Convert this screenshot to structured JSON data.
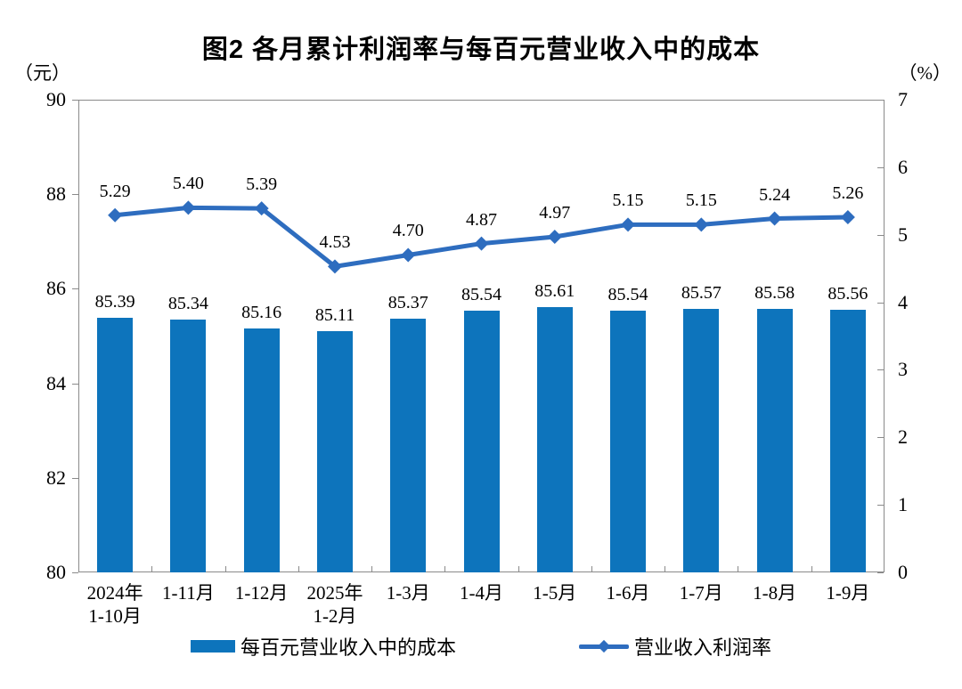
{
  "colors": {
    "bar": "#0d74bc",
    "line": "#2e6dbf",
    "axis": "#8a8a8a",
    "text": "#000000",
    "background": "#ffffff"
  },
  "chart_data": {
    "type": "combo-bar-line",
    "title": "图2 各月累计利润率与每百元营业收入中的成本",
    "categories": [
      "2024年\n1-10月",
      "1-11月",
      "1-12月",
      "2025年\n1-2月",
      "1-3月",
      "1-4月",
      "1-5月",
      "1-6月",
      "1-7月",
      "1-8月",
      "1-9月"
    ],
    "series": [
      {
        "name": "每百元营业收入中的成本",
        "type": "bar",
        "axis": "left",
        "values": [
          85.39,
          85.34,
          85.16,
          85.11,
          85.37,
          85.54,
          85.61,
          85.54,
          85.57,
          85.58,
          85.56
        ]
      },
      {
        "name": "营业收入利润率",
        "type": "line",
        "axis": "right",
        "values": [
          5.29,
          5.4,
          5.39,
          4.53,
          4.7,
          4.87,
          4.97,
          5.15,
          5.15,
          5.24,
          5.26
        ]
      }
    ],
    "left_axis": {
      "unit": "（元）",
      "ticks": [
        90,
        88,
        86,
        84,
        82,
        80
      ],
      "ylim": [
        80,
        90
      ]
    },
    "right_axis": {
      "unit": "（%）",
      "ticks": [
        7,
        6,
        5,
        4,
        3,
        2,
        1,
        0
      ],
      "ylim": [
        0,
        7
      ]
    },
    "grid": false,
    "legend_position": "bottom",
    "data_label_decimals": 2
  }
}
